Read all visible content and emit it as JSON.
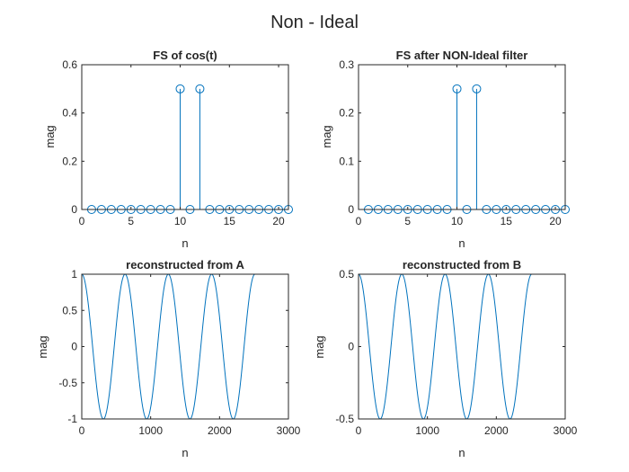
{
  "figure": {
    "title": "Non - Ideal"
  },
  "colors": {
    "series": "#0072BD",
    "axis": "#262626",
    "background": "#ffffff"
  },
  "chart_data": [
    {
      "type": "stem",
      "title": "FS of cos(t)",
      "xlabel": "n",
      "ylabel": "mag",
      "xlim": [
        0,
        21
      ],
      "ylim": [
        0,
        0.6
      ],
      "xticks": [
        0,
        5,
        10,
        15,
        20
      ],
      "yticks": [
        0,
        0.2,
        0.4,
        0.6
      ],
      "xticklabels": [
        "0",
        "5",
        "10",
        "15",
        "20"
      ],
      "yticklabels": [
        "0",
        "0.2",
        "0.4",
        "0.6"
      ],
      "x": [
        1,
        2,
        3,
        4,
        5,
        6,
        7,
        8,
        9,
        10,
        11,
        12,
        13,
        14,
        15,
        16,
        17,
        18,
        19,
        20,
        21
      ],
      "y": [
        0,
        0,
        0,
        0,
        0,
        0,
        0,
        0,
        0,
        0.5,
        0,
        0.5,
        0,
        0,
        0,
        0,
        0,
        0,
        0,
        0,
        0
      ]
    },
    {
      "type": "stem",
      "title": "FS after NON-Ideal filter",
      "xlabel": "n",
      "ylabel": "mag",
      "xlim": [
        0,
        21
      ],
      "ylim": [
        0,
        0.3
      ],
      "xticks": [
        0,
        5,
        10,
        15,
        20
      ],
      "yticks": [
        0,
        0.1,
        0.2,
        0.3
      ],
      "xticklabels": [
        "0",
        "5",
        "10",
        "15",
        "20"
      ],
      "yticklabels": [
        "0",
        "0.1",
        "0.2",
        "0.3"
      ],
      "x": [
        1,
        2,
        3,
        4,
        5,
        6,
        7,
        8,
        9,
        10,
        11,
        12,
        13,
        14,
        15,
        16,
        17,
        18,
        19,
        20,
        21
      ],
      "y": [
        0,
        0,
        0,
        0,
        0,
        0,
        0,
        0,
        0,
        0.25,
        0,
        0.25,
        0,
        0,
        0,
        0,
        0,
        0,
        0,
        0,
        0
      ]
    },
    {
      "type": "line",
      "title": "reconstructed from A",
      "xlabel": "n",
      "ylabel": "mag",
      "xlim": [
        0,
        3000
      ],
      "ylim": [
        -1,
        1
      ],
      "xticks": [
        0,
        1000,
        2000,
        3000
      ],
      "yticks": [
        -1,
        -0.5,
        0,
        0.5,
        1
      ],
      "xticklabels": [
        "0",
        "1000",
        "2000",
        "3000"
      ],
      "yticklabels": [
        "-1",
        "-0.5",
        "0",
        "0.5",
        "1"
      ],
      "function": {
        "kind": "cosine",
        "amplitude": 1,
        "period": 628.3,
        "x_start": 0,
        "x_end": 2513
      }
    },
    {
      "type": "line",
      "title": "reconstructed from B",
      "xlabel": "n",
      "ylabel": "mag",
      "xlim": [
        0,
        3000
      ],
      "ylim": [
        -0.5,
        0.5
      ],
      "xticks": [
        0,
        1000,
        2000,
        3000
      ],
      "yticks": [
        -0.5,
        0,
        0.5
      ],
      "xticklabels": [
        "0",
        "1000",
        "2000",
        "3000"
      ],
      "yticklabels": [
        "-0.5",
        "0",
        "0.5"
      ],
      "function": {
        "kind": "cosine",
        "amplitude": 0.5,
        "period": 628.3,
        "x_start": 0,
        "x_end": 2513
      }
    }
  ]
}
